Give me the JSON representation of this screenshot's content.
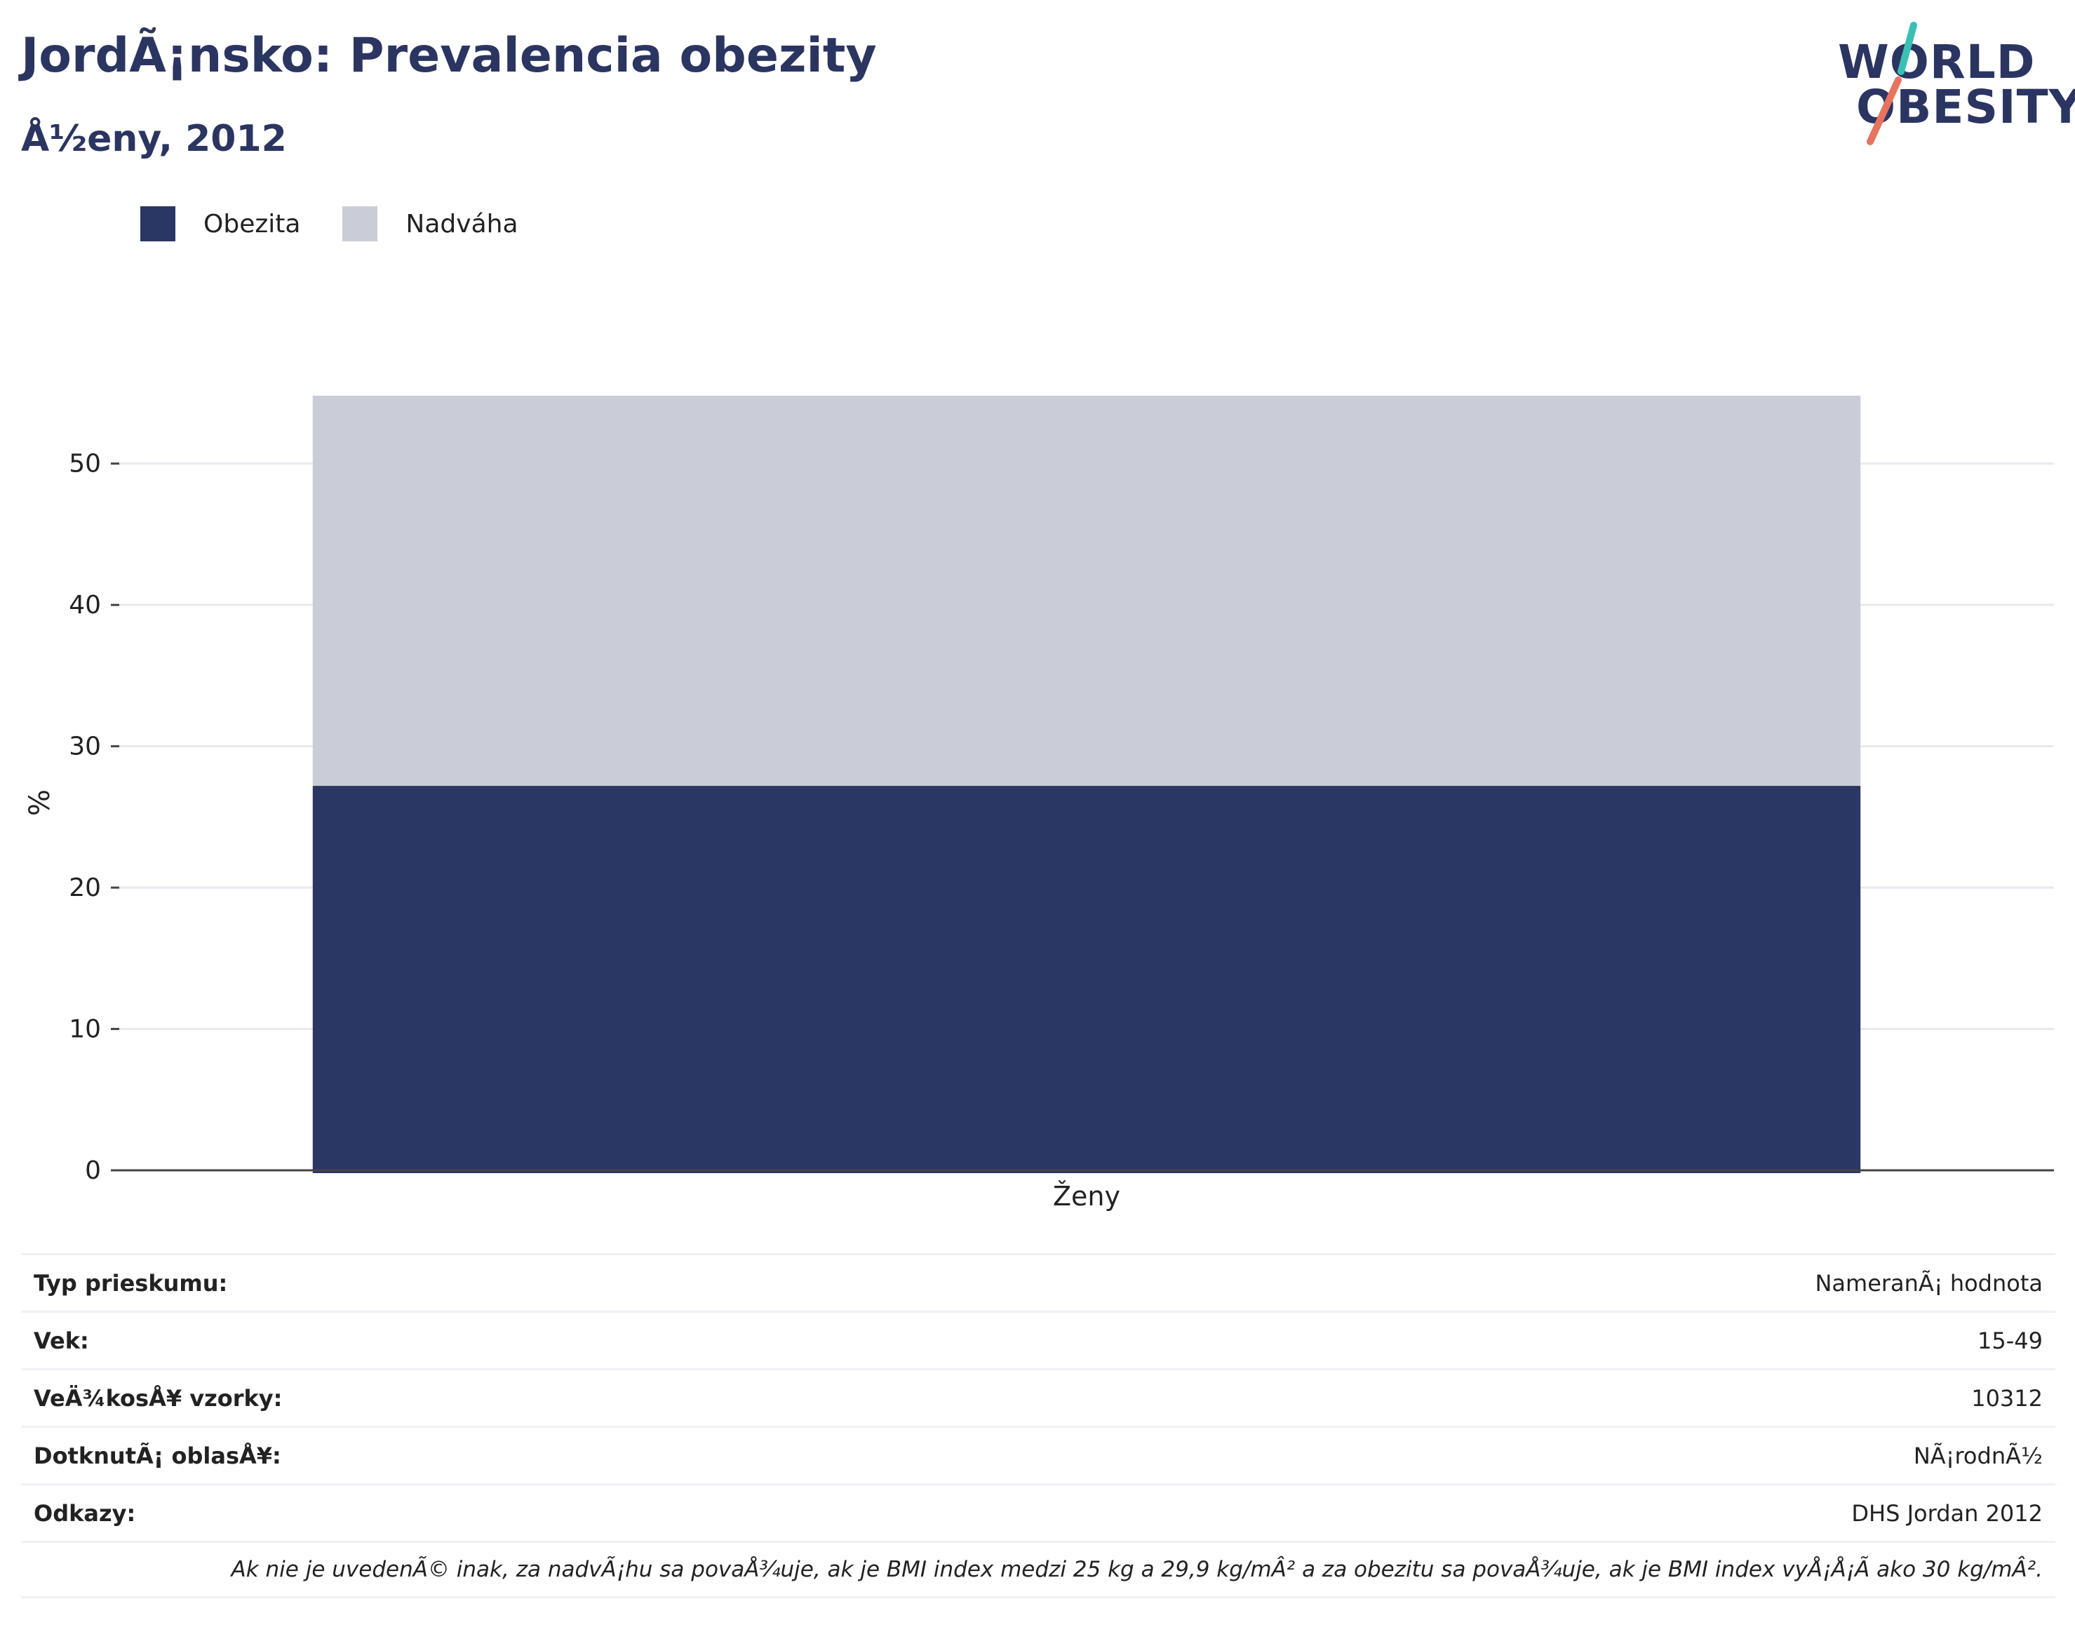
{
  "header": {
    "title": "JordÃ¡nsko: Prevalencia obezity",
    "subtitle": "Å½eny, 2012"
  },
  "logo": {
    "line1": "WORLD",
    "line2": "OBESITY"
  },
  "colors": {
    "obesity": "#2a3663",
    "overweight": "#cacdd8",
    "text": "#2b3561",
    "logo_slash_top": "#3bbfb4",
    "logo_slash_bottom": "#e8735f"
  },
  "chart_data": {
    "type": "bar",
    "stacked": true,
    "categories": [
      "Ženy"
    ],
    "series": [
      {
        "name": "Obezita",
        "values": [
          27.2
        ]
      },
      {
        "name": "Nadváha",
        "values": [
          27.6
        ]
      }
    ],
    "ylabel": "%",
    "ylim": [
      0,
      55
    ],
    "yticks": [
      0,
      10,
      20,
      30,
      40,
      50
    ],
    "grid": true,
    "legend": "top-left"
  },
  "info": {
    "rows": [
      {
        "key": "Typ prieskumu:",
        "value": "NameranÃ¡ hodnota"
      },
      {
        "key": "Vek:",
        "value": "15-49"
      },
      {
        "key": "VeÄ¾kosÅ¥ vzorky:",
        "value": "10312"
      },
      {
        "key": "DotknutÃ¡ oblasÅ¥:",
        "value": "NÃ¡rodnÃ½"
      },
      {
        "key": "Odkazy:",
        "value": "DHS Jordan 2012"
      }
    ],
    "note": "Ak nie je uvedenÃ© inak, za nadvÃ¡hu sa povaÅ¾uje, ak je BMI index medzi 25 kg a 29,9 kg/mÂ² a za obezitu sa povaÅ¾uje, ak je BMI index vyÅ¡Å¡Ã ako 30 kg/mÂ²."
  }
}
